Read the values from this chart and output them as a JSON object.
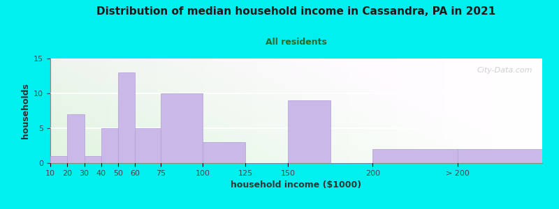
{
  "title": "Distribution of median household income in Cassandra, PA in 2021",
  "subtitle": "All residents",
  "xlabel": "household income ($1000)",
  "ylabel": "households",
  "bar_color": "#c9b8e8",
  "bar_edgecolor": "#b0a0d0",
  "background_color": "#00efef",
  "categories": [
    "10",
    "20",
    "30",
    "40",
    "50",
    "60",
    "75",
    "100",
    "125",
    "150",
    "200",
    "> 200"
  ],
  "values": [
    1,
    7,
    1,
    5,
    13,
    5,
    10,
    3,
    0,
    9,
    2,
    2
  ],
  "bar_lefts": [
    10,
    20,
    30,
    40,
    50,
    60,
    75,
    100,
    125,
    150,
    200,
    250
  ],
  "bar_widths": [
    10,
    10,
    10,
    10,
    10,
    15,
    25,
    25,
    25,
    25,
    50,
    50
  ],
  "xlim": [
    10,
    300
  ],
  "ylim": [
    0,
    15
  ],
  "yticks": [
    0,
    5,
    10,
    15
  ],
  "watermark": "City-Data.com",
  "title_fontsize": 11,
  "subtitle_fontsize": 9,
  "axis_label_fontsize": 9,
  "tick_fontsize": 8,
  "title_color": "#1a1a1a",
  "subtitle_color": "#2a6a2a",
  "xlabel_color": "#333333",
  "ylabel_color": "#333333"
}
